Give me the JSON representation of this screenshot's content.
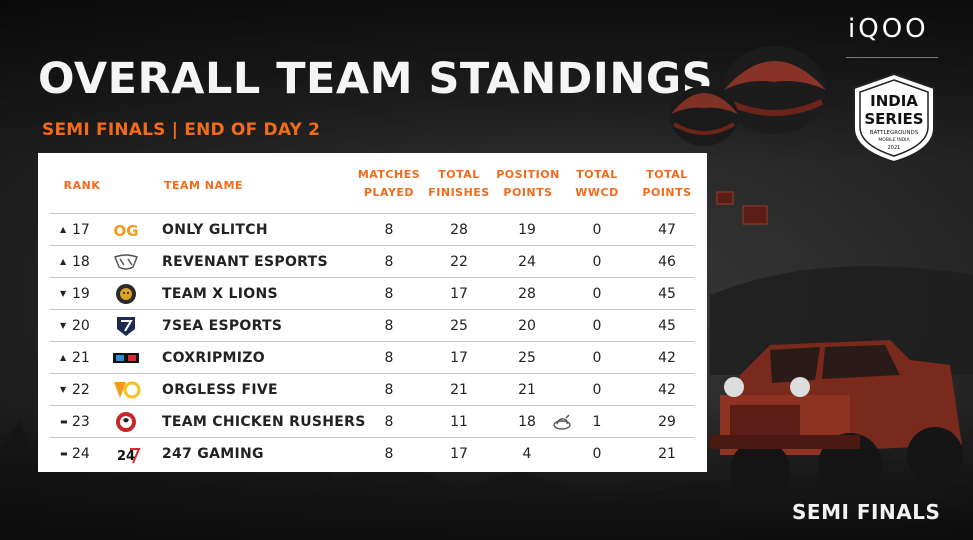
{
  "header": {
    "title": "OVERALL TEAM STANDINGS",
    "subtitle": "SEMI FINALS | END OF DAY 2",
    "brand": "iQOO",
    "footer": "SEMI FINALS",
    "logo_text": [
      "INDIA",
      "SERIES",
      "BATTLEGROUNDS",
      "MOBILE INDIA",
      "2021"
    ]
  },
  "table": {
    "headers": {
      "rank": "RANK",
      "team": "TEAM NAME",
      "matches": [
        "MATCHES",
        "PLAYED"
      ],
      "finishes": [
        "TOTAL",
        "FINISHES"
      ],
      "position": [
        "POSITION",
        "POINTS"
      ],
      "wwcd": [
        "TOTAL",
        "WWCD"
      ],
      "total": [
        "TOTAL",
        "POINTS"
      ]
    },
    "rows": [
      {
        "trend": "up",
        "trend_glyph": "▲",
        "rank": "17",
        "team": "ONLY GLITCH",
        "logo": "og-logo",
        "matches": "8",
        "finishes": "28",
        "position": "19",
        "wwcd": "0",
        "total": "47"
      },
      {
        "trend": "up",
        "trend_glyph": "▲",
        "rank": "18",
        "team": "REVENANT ESPORTS",
        "logo": "revenant-logo",
        "matches": "8",
        "finishes": "22",
        "position": "24",
        "wwcd": "0",
        "total": "46"
      },
      {
        "trend": "down",
        "trend_glyph": "▼",
        "rank": "19",
        "team": "TEAM X LIONS",
        "logo": "lion-logo",
        "matches": "8",
        "finishes": "17",
        "position": "28",
        "wwcd": "0",
        "total": "45"
      },
      {
        "trend": "down",
        "trend_glyph": "▼",
        "rank": "20",
        "team": "7SEA ESPORTS",
        "logo": "7sea-logo",
        "matches": "8",
        "finishes": "25",
        "position": "20",
        "wwcd": "0",
        "total": "45"
      },
      {
        "trend": "up",
        "trend_glyph": "▲",
        "rank": "21",
        "team": "COXRIPMIZO",
        "logo": "coxripmizo-logo",
        "matches": "8",
        "finishes": "17",
        "position": "25",
        "wwcd": "0",
        "total": "42"
      },
      {
        "trend": "down",
        "trend_glyph": "▼",
        "rank": "22",
        "team": "ORGLESS FIVE",
        "logo": "orgless-logo",
        "matches": "8",
        "finishes": "21",
        "position": "21",
        "wwcd": "0",
        "total": "42"
      },
      {
        "trend": "same",
        "trend_glyph": "▬",
        "rank": "23",
        "team": "TEAM CHICKEN RUSHERS",
        "logo": "chicken-rushers-logo",
        "matches": "8",
        "finishes": "11",
        "position": "18",
        "wwcd": "1",
        "total": "29",
        "wwcd_icon": "chicken-dinner-icon"
      },
      {
        "trend": "same",
        "trend_glyph": "▬",
        "rank": "24",
        "team": "247 GAMING",
        "logo": "247-gaming-logo",
        "matches": "8",
        "finishes": "17",
        "position": "4",
        "wwcd": "0",
        "total": "21"
      }
    ]
  },
  "colors": {
    "accent": "#f26a1b",
    "table_bg": "#ffffff",
    "text": "#222222"
  }
}
